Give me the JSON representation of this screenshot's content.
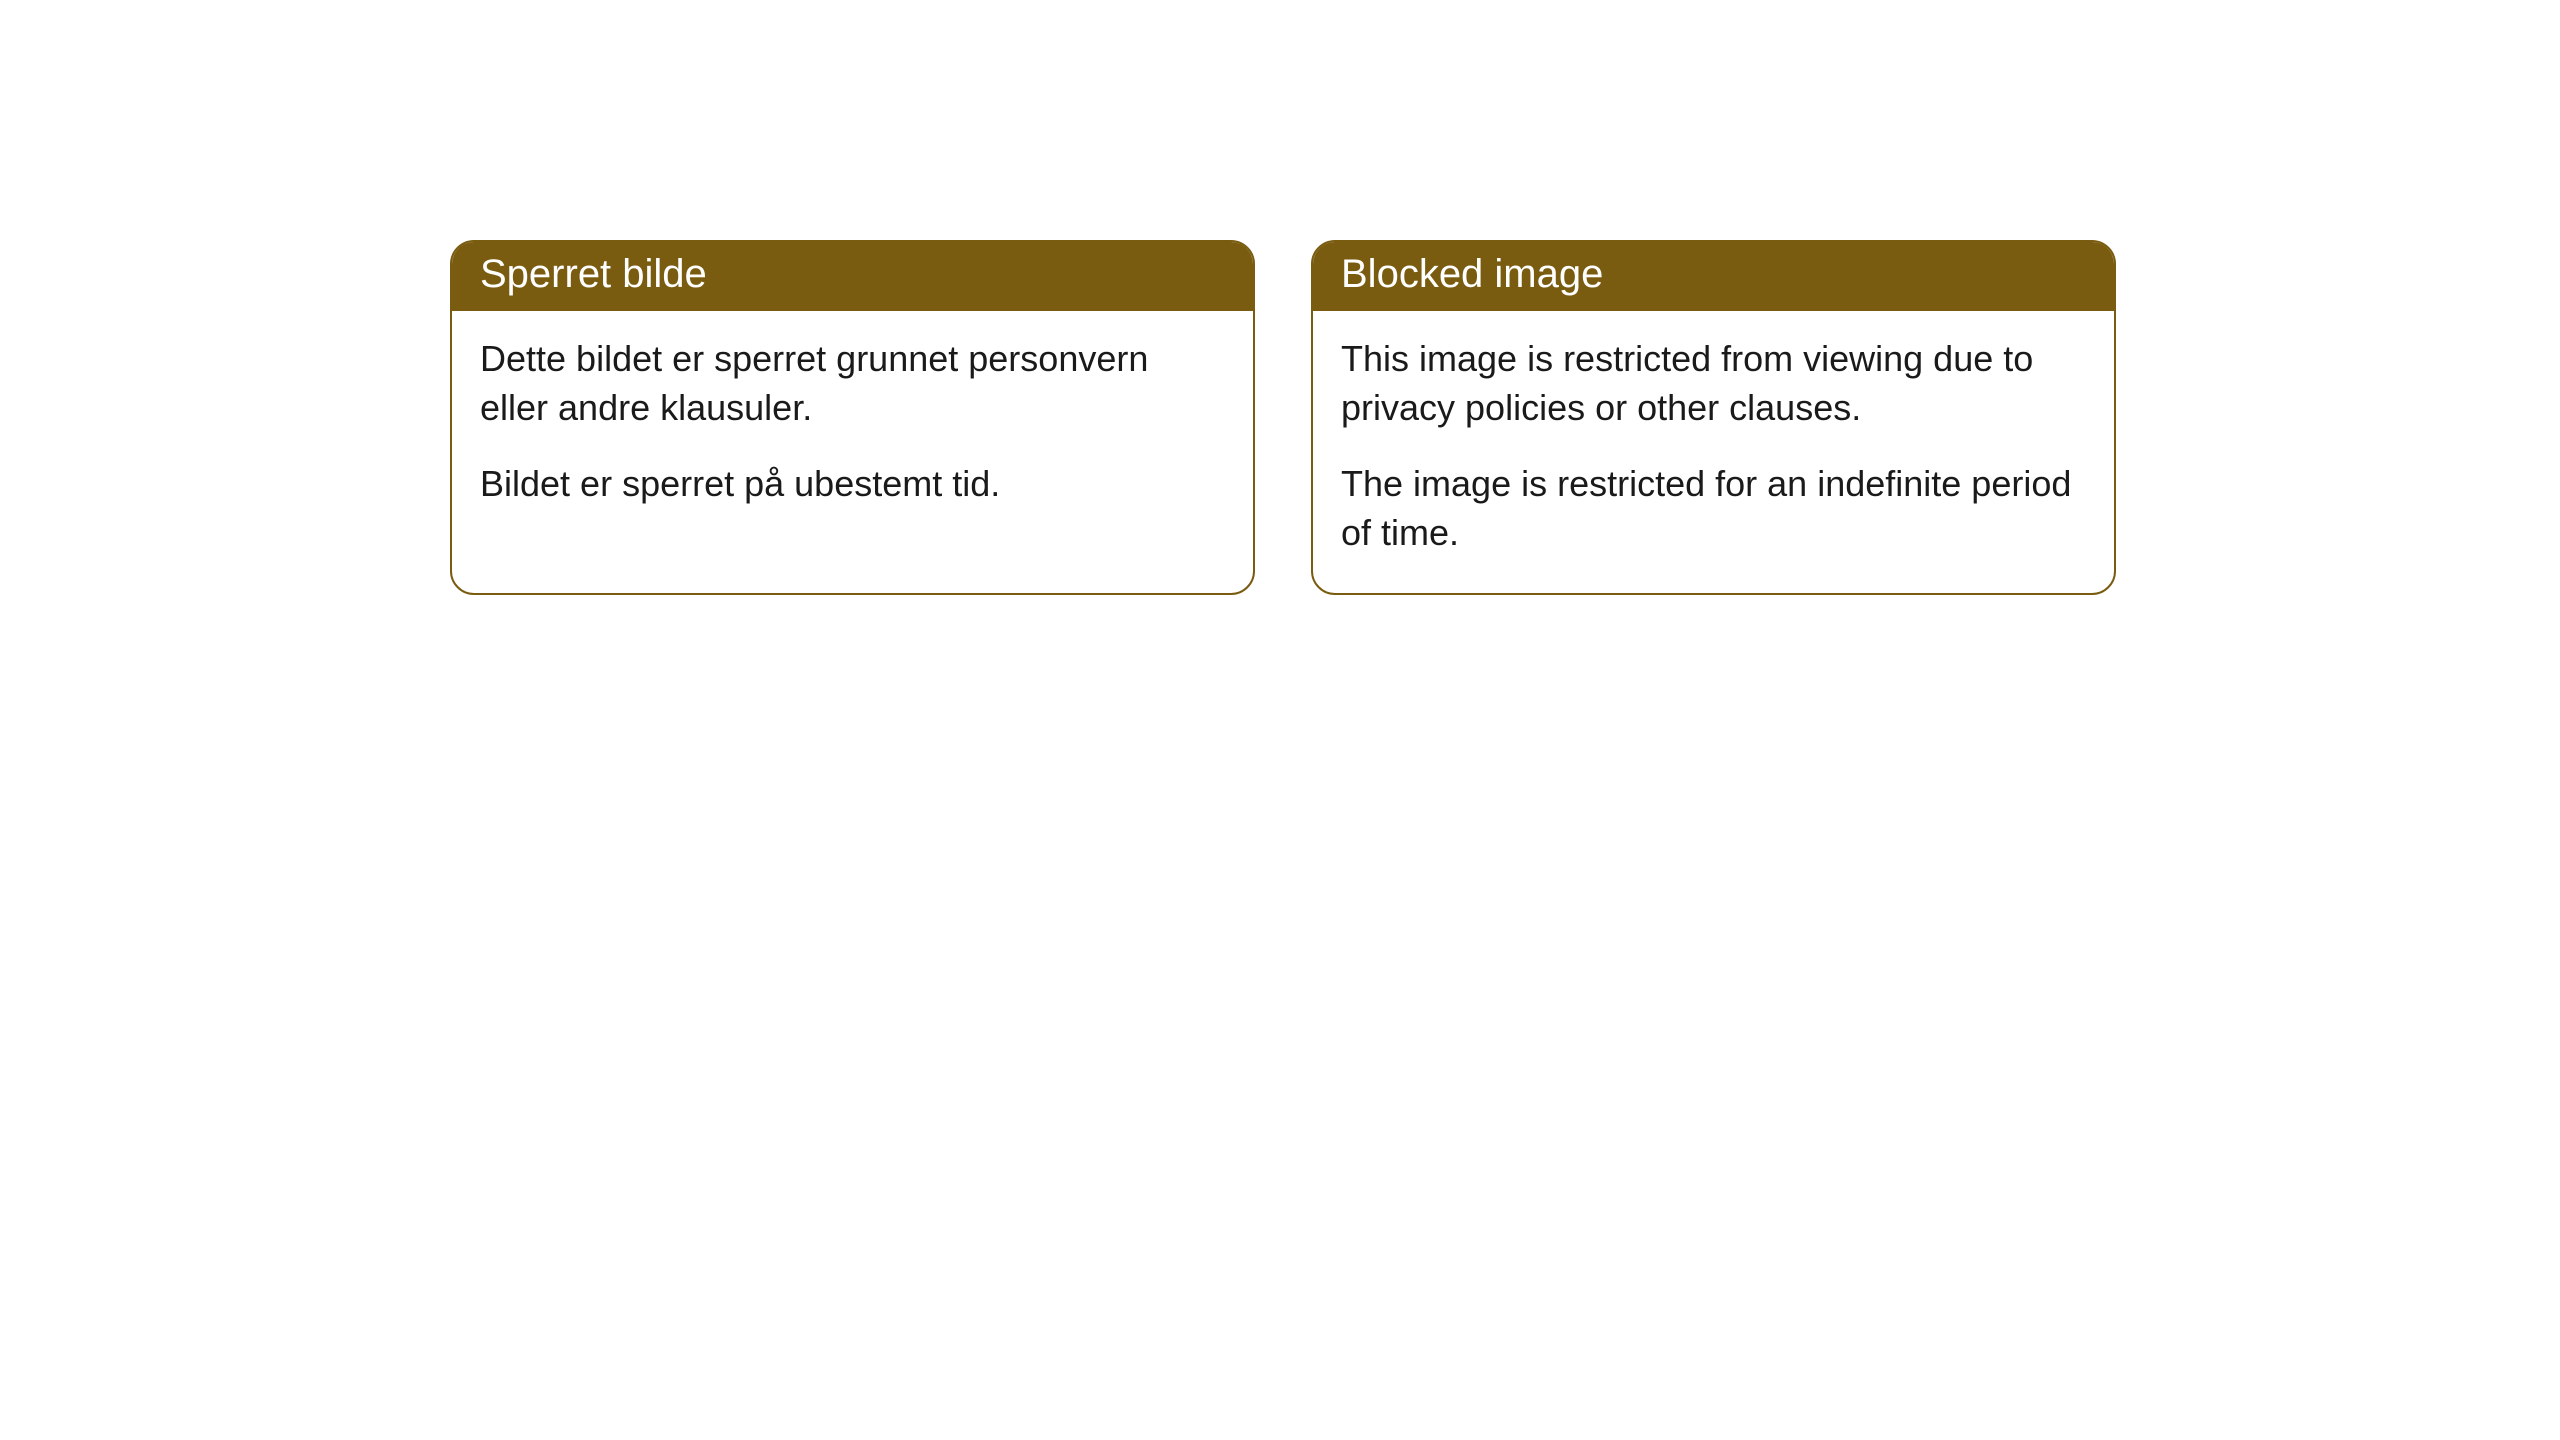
{
  "cards": [
    {
      "title": "Sperret bilde",
      "paragraph1": "Dette bildet er sperret grunnet personvern eller andre klausuler.",
      "paragraph2": "Bildet er sperret på ubestemt tid."
    },
    {
      "title": "Blocked image",
      "paragraph1": "This image is restricted from viewing due to privacy policies or other clauses.",
      "paragraph2": "The image is restricted for an indefinite period of time."
    }
  ],
  "styling": {
    "header_background": "#7a5c10",
    "header_text_color": "#ffffff",
    "border_color": "#7a5c10",
    "body_background": "#ffffff",
    "body_text_color": "#1a1a1a",
    "border_radius": 24,
    "header_fontsize": 40,
    "body_fontsize": 36
  }
}
